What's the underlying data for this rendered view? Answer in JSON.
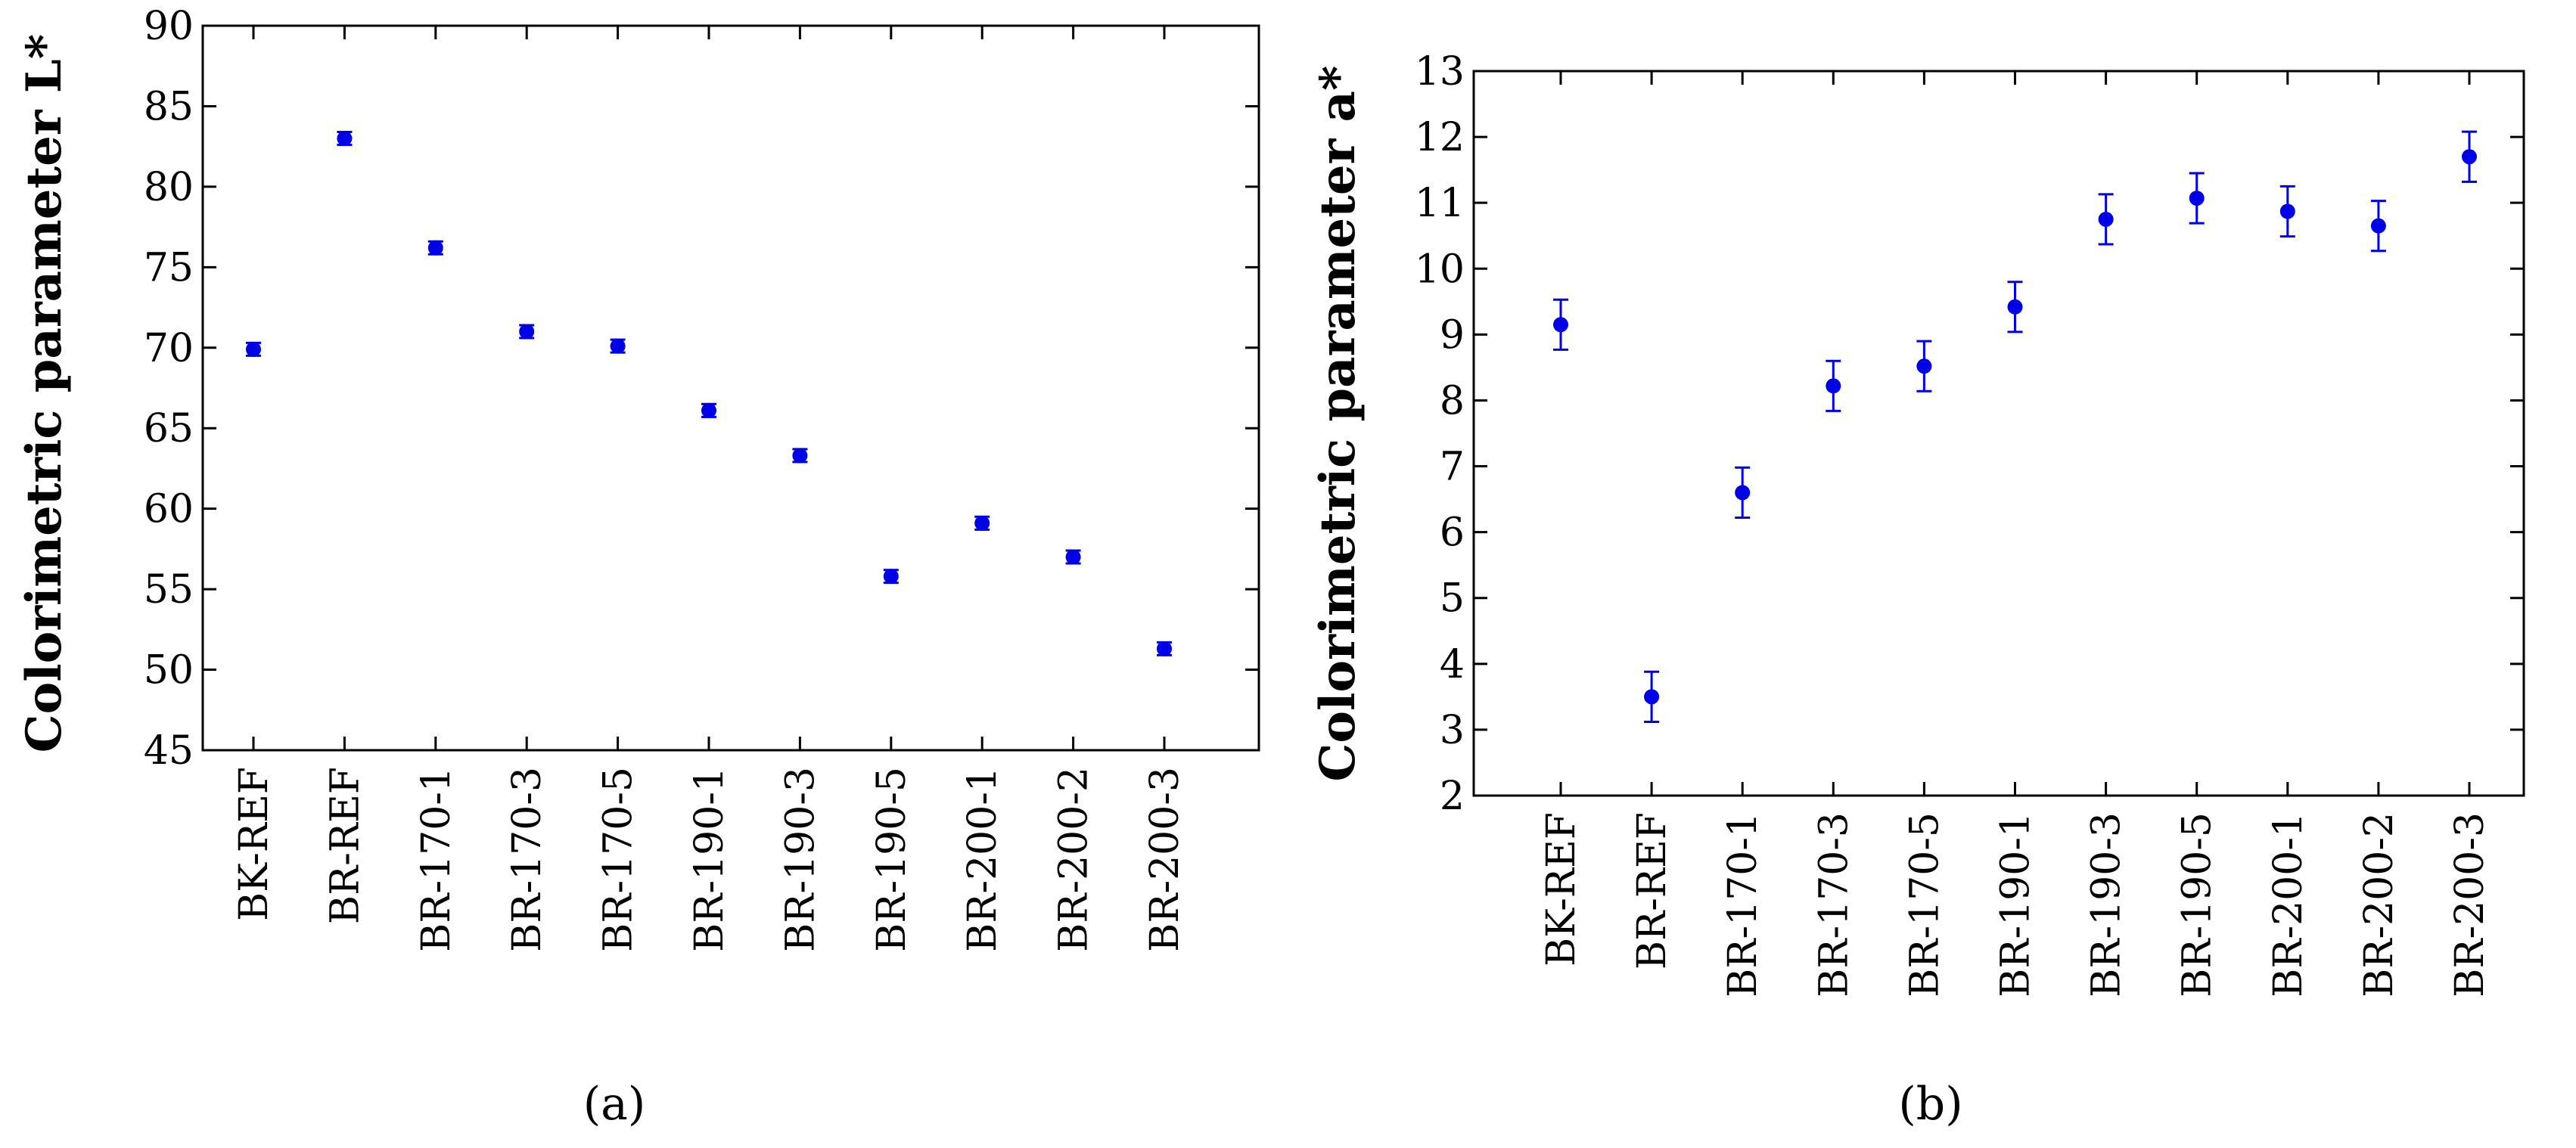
{
  "colors": {
    "marker": "#0000e6",
    "axis": "#000000"
  },
  "chart_data": [
    {
      "type": "scatter",
      "panel_label": "(a)",
      "ylabel": "Colorimetric parameter L*",
      "xlabel": "",
      "categories": [
        "BK-REF",
        "BR-REF",
        "BR-170-1",
        "BR-170-3",
        "BR-170-5",
        "BR-190-1",
        "BR-190-3",
        "BR-190-5",
        "BR-200-1",
        "BR-200-2",
        "BR-200-3"
      ],
      "series": [
        {
          "values": [
            69.9,
            83.0,
            76.2,
            71.0,
            70.1,
            66.1,
            63.3,
            55.8,
            59.1,
            57.0,
            51.3
          ],
          "error": [
            0.4,
            0.4,
            0.4,
            0.4,
            0.4,
            0.4,
            0.4,
            0.4,
            0.4,
            0.4,
            0.4
          ]
        }
      ],
      "ylim": [
        45,
        90
      ],
      "yticks": [
        45,
        50,
        55,
        60,
        65,
        70,
        75,
        80,
        85,
        90
      ],
      "grid": false,
      "legend": "none"
    },
    {
      "type": "scatter",
      "panel_label": "(b)",
      "ylabel": "Colorimetric parameter a*",
      "xlabel": "",
      "categories": [
        "BK-REF",
        "BR-REF",
        "BR-170-1",
        "BR-170-3",
        "BR-170-5",
        "BR-190-1",
        "BR-190-3",
        "BR-190-5",
        "BR-200-1",
        "BR-200-2",
        "BR-200-3"
      ],
      "series": [
        {
          "values": [
            9.15,
            3.5,
            6.6,
            8.22,
            8.52,
            9.42,
            10.75,
            11.07,
            10.87,
            10.65,
            11.7
          ],
          "error": [
            0.38,
            0.38,
            0.38,
            0.38,
            0.38,
            0.38,
            0.38,
            0.38,
            0.38,
            0.38,
            0.38
          ]
        }
      ],
      "ylim": [
        2,
        13
      ],
      "yticks": [
        2,
        3,
        4,
        5,
        6,
        7,
        8,
        9,
        10,
        11,
        12,
        13
      ],
      "grid": false,
      "legend": "none"
    }
  ]
}
